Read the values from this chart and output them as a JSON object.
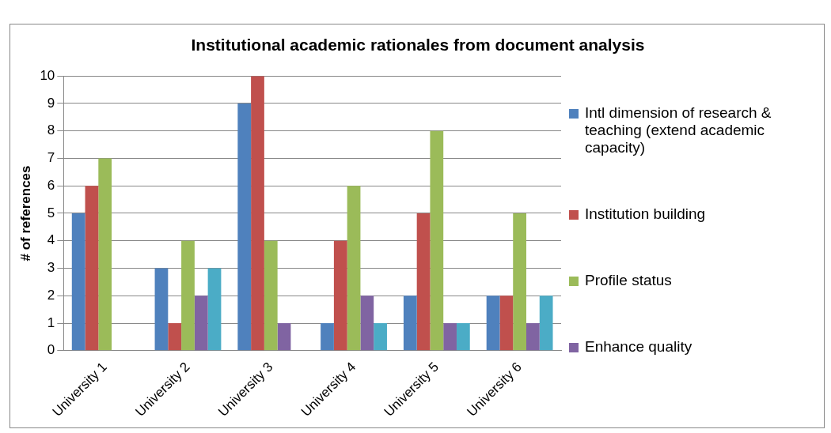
{
  "chart_data": {
    "type": "bar",
    "title": "Institutional academic rationales from document analysis",
    "ylabel": "# of references",
    "categories": [
      "University 1",
      "University 2",
      "University 3",
      "University 4",
      "University 5",
      "University 6"
    ],
    "series": [
      {
        "name": "Intl dimension of research & teaching (extend academic capacity)",
        "color": "#4f81bd",
        "values": [
          5,
          3,
          9,
          1,
          2,
          2
        ]
      },
      {
        "name": "Institution building",
        "color": "#c0504d",
        "values": [
          6,
          1,
          10,
          4,
          5,
          2
        ]
      },
      {
        "name": "Profile status",
        "color": "#9bbb59",
        "values": [
          7,
          4,
          4,
          6,
          8,
          5
        ]
      },
      {
        "name": "Enhance quality",
        "color": "#8064a2",
        "values": [
          0,
          2,
          1,
          2,
          1,
          1
        ]
      },
      {
        "color": "#4bacc6",
        "values": [
          0,
          3,
          0,
          1,
          1,
          2
        ]
      }
    ],
    "ylim": [
      0,
      10
    ],
    "yticks": [
      0,
      1,
      2,
      3,
      4,
      5,
      6,
      7,
      8,
      9,
      10
    ],
    "grid": "y",
    "legend": "right"
  }
}
